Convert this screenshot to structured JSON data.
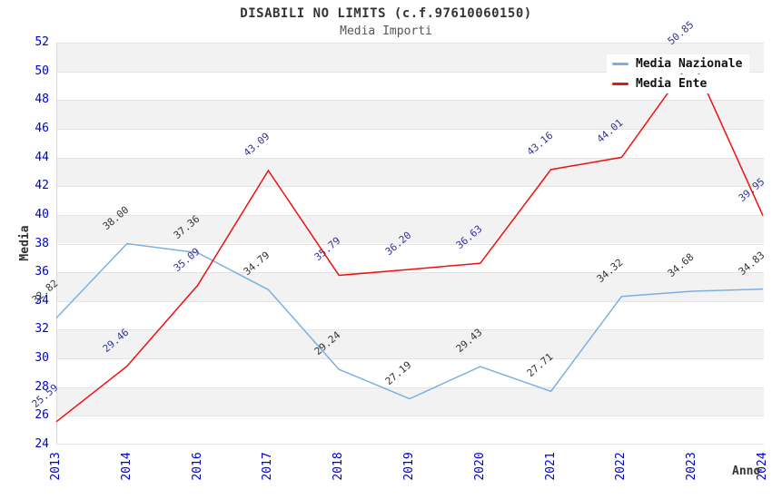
{
  "page": {
    "title": "DISABILI NO LIMITS (c.f.97610060150)",
    "subtitle": "Media Importi"
  },
  "chart_data": {
    "type": "line",
    "title": "DISABILI NO LIMITS (c.f.97610060150)",
    "subtitle": "Media Importi",
    "xlabel": "Anno",
    "ylabel": "Media",
    "ylim": [
      24,
      52
    ],
    "ytick_step": 2,
    "grid": "horizontal-bands",
    "legend_position": "top-right",
    "band_colors": [
      "#f2f2f2",
      "#ffffff"
    ],
    "axis_tick_color": "#0000cc",
    "categories": [
      "2013",
      "2014",
      "2016",
      "2017",
      "2018",
      "2019",
      "2020",
      "2021",
      "2022",
      "2023",
      "2024"
    ],
    "series": [
      {
        "name": "Media Nazionale",
        "color": "#7cb0e2",
        "label_color": "#333333",
        "values": [
          32.82,
          38.0,
          37.36,
          34.79,
          29.24,
          27.19,
          29.43,
          27.71,
          34.32,
          34.68,
          34.83
        ]
      },
      {
        "name": "Media Ente",
        "color": "#ee1111",
        "label_color": "#333399",
        "values": [
          25.59,
          29.46,
          35.09,
          43.09,
          35.79,
          36.2,
          36.63,
          43.16,
          44.01,
          50.85,
          39.95
        ]
      }
    ]
  }
}
